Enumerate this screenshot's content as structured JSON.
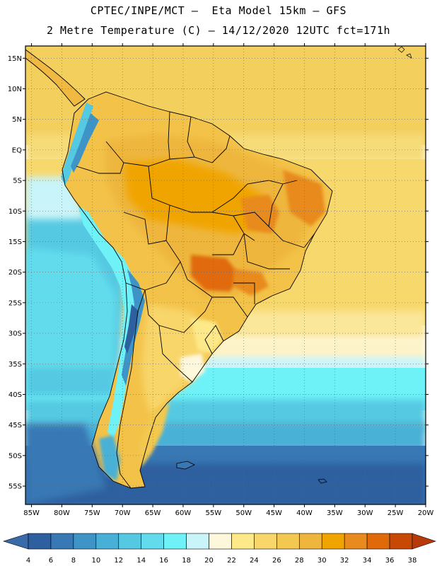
{
  "header": {
    "line1": "CPTEC/INPE/MCT –  Eta Model 15km – GFS",
    "line2": "2 Metre Temperature (C) – 14/12/2020 12UTC fct=171h"
  },
  "axes": {
    "lat_labels": [
      "15N",
      "10N",
      "5N",
      "EQ",
      "5S",
      "10S",
      "15S",
      "20S",
      "25S",
      "30S",
      "35S",
      "40S",
      "45S",
      "50S",
      "55S"
    ],
    "lon_labels": [
      "85W",
      "80W",
      "75W",
      "70W",
      "65W",
      "60W",
      "55W",
      "50W",
      "45W",
      "40W",
      "35W",
      "30W",
      "25W",
      "20W"
    ],
    "lat_range": [
      17,
      -58
    ],
    "lon_range": [
      -86,
      -20
    ]
  },
  "colorbar": {
    "labels": [
      "4",
      "6",
      "8",
      "10",
      "12",
      "14",
      "16",
      "18",
      "20",
      "22",
      "24",
      "26",
      "28",
      "30",
      "32",
      "34",
      "36",
      "38"
    ],
    "low_color": "#3a6aa8",
    "high_color": "#b83a0a",
    "colors": [
      "#2e5f9e",
      "#3878b4",
      "#3e94c6",
      "#48b0d6",
      "#55c9e2",
      "#62dced",
      "#6ef2f8",
      "#c8f4fa",
      "#fdf7dc",
      "#fde98a",
      "#f8d66a",
      "#f2c850",
      "#eeb63c",
      "#f0a400",
      "#e88a1e",
      "#e06a0a",
      "#c84806"
    ]
  }
}
